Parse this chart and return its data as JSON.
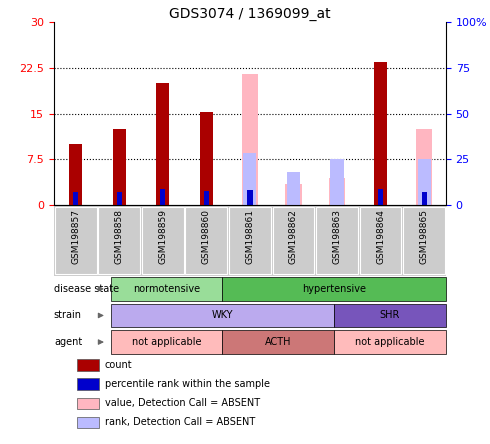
{
  "title": "GDS3074 / 1369099_at",
  "samples": [
    "GSM198857",
    "GSM198858",
    "GSM198859",
    "GSM198860",
    "GSM198861",
    "GSM198862",
    "GSM198863",
    "GSM198864",
    "GSM198865"
  ],
  "count_values": [
    10,
    12.5,
    20,
    15.2,
    null,
    null,
    null,
    23.5,
    null
  ],
  "percentile_values": [
    7,
    7,
    9,
    7.5,
    8.5,
    null,
    null,
    9,
    7
  ],
  "absent_value_values": [
    null,
    null,
    null,
    null,
    21.5,
    3.5,
    4.5,
    null,
    12.5
  ],
  "absent_rank_values": [
    null,
    null,
    null,
    null,
    8.5,
    5.5,
    7.5,
    null,
    7.5
  ],
  "color_count": "#AA0000",
  "color_percentile": "#0000CC",
  "color_absent_value": "#FFB6C1",
  "color_absent_rank": "#BBBBFF",
  "ylim_left": [
    0,
    30
  ],
  "ylim_right": [
    0,
    100
  ],
  "yticks_left": [
    0,
    7.5,
    15,
    22.5,
    30
  ],
  "yticks_right": [
    0,
    25,
    50,
    75,
    100
  ],
  "yticklabels_left": [
    "0",
    "7.5",
    "15",
    "22.5",
    "30"
  ],
  "yticklabels_right": [
    "0",
    "25",
    "50",
    "75",
    "100%"
  ],
  "disease_state": {
    "groups": [
      {
        "label": "normotensive",
        "start": 0,
        "end": 3,
        "color": "#99DD99"
      },
      {
        "label": "hypertensive",
        "start": 3,
        "end": 9,
        "color": "#55BB55"
      }
    ]
  },
  "strain": {
    "groups": [
      {
        "label": "WKY",
        "start": 0,
        "end": 6,
        "color": "#BBAAEE"
      },
      {
        "label": "SHR",
        "start": 6,
        "end": 9,
        "color": "#7755BB"
      }
    ]
  },
  "agent": {
    "groups": [
      {
        "label": "not applicable",
        "start": 0,
        "end": 3,
        "color": "#FFBBBB"
      },
      {
        "label": "ACTH",
        "start": 3,
        "end": 6,
        "color": "#CC7777"
      },
      {
        "label": "not applicable",
        "start": 6,
        "end": 9,
        "color": "#FFBBBB"
      }
    ]
  },
  "legend_items": [
    {
      "label": "count",
      "color": "#AA0000"
    },
    {
      "label": "percentile rank within the sample",
      "color": "#0000CC"
    },
    {
      "label": "value, Detection Call = ABSENT",
      "color": "#FFB6C1"
    },
    {
      "label": "rank, Detection Call = ABSENT",
      "color": "#BBBBFF"
    }
  ],
  "bg_color": "#CCCCCC",
  "cell_line_color": "#AAAAAA"
}
